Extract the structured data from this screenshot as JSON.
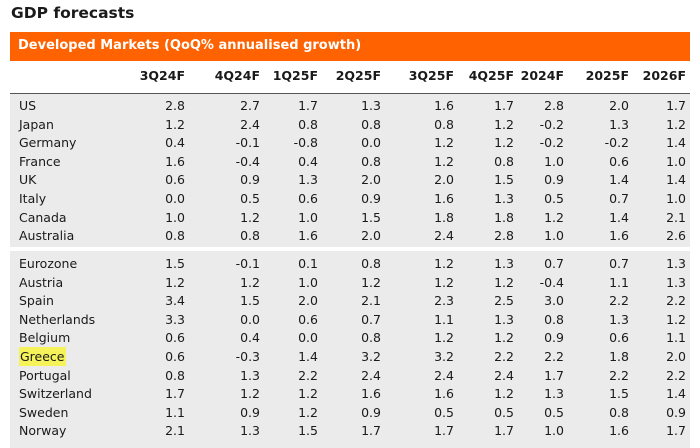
{
  "title": "GDP forecasts",
  "banner": "Developed Markets (QoQ% annualised growth)",
  "columns": [
    "3Q24F",
    "4Q24F",
    "1Q25F",
    "2Q25F",
    "3Q25F",
    "4Q25F",
    "2024F",
    "2025F",
    "2026F"
  ],
  "group1": [
    {
      "name": "US",
      "v": [
        "2.8",
        "2.7",
        "1.7",
        "1.3",
        "1.6",
        "1.7",
        "2.8",
        "2.0",
        "1.7"
      ]
    },
    {
      "name": "Japan",
      "v": [
        "1.2",
        "2.4",
        "0.8",
        "0.8",
        "0.8",
        "1.2",
        "-0.2",
        "1.3",
        "1.2"
      ]
    },
    {
      "name": "Germany",
      "v": [
        "0.4",
        "-0.1",
        "-0.8",
        "0.0",
        "1.2",
        "1.2",
        "-0.2",
        "-0.2",
        "1.4"
      ]
    },
    {
      "name": "France",
      "v": [
        "1.6",
        "-0.4",
        "0.4",
        "0.8",
        "1.2",
        "0.8",
        "1.0",
        "0.6",
        "1.0"
      ]
    },
    {
      "name": "UK",
      "v": [
        "0.6",
        "0.9",
        "1.3",
        "2.0",
        "2.0",
        "1.5",
        "0.9",
        "1.4",
        "1.4"
      ]
    },
    {
      "name": "Italy",
      "v": [
        "0.0",
        "0.5",
        "0.6",
        "0.9",
        "1.6",
        "1.3",
        "0.5",
        "0.7",
        "1.0"
      ]
    },
    {
      "name": "Canada",
      "v": [
        "1.0",
        "1.2",
        "1.0",
        "1.5",
        "1.8",
        "1.8",
        "1.2",
        "1.4",
        "2.1"
      ]
    },
    {
      "name": "Australia",
      "v": [
        "0.8",
        "0.8",
        "1.6",
        "2.0",
        "2.4",
        "2.8",
        "1.0",
        "1.6",
        "2.6"
      ]
    }
  ],
  "group2": [
    {
      "name": "Eurozone",
      "v": [
        "1.5",
        "-0.1",
        "0.1",
        "0.8",
        "1.2",
        "1.3",
        "0.7",
        "0.7",
        "1.3"
      ]
    },
    {
      "name": "Austria",
      "v": [
        "1.2",
        "1.2",
        "1.0",
        "1.2",
        "1.2",
        "1.2",
        "-0.4",
        "1.1",
        "1.3"
      ]
    },
    {
      "name": "Spain",
      "v": [
        "3.4",
        "1.5",
        "2.0",
        "2.1",
        "2.3",
        "2.5",
        "3.0",
        "2.2",
        "2.2"
      ]
    },
    {
      "name": "Netherlands",
      "v": [
        "3.3",
        "0.0",
        "0.6",
        "0.7",
        "1.1",
        "1.3",
        "0.8",
        "1.3",
        "1.2"
      ]
    },
    {
      "name": "Belgium",
      "v": [
        "0.6",
        "0.4",
        "0.0",
        "0.8",
        "1.2",
        "1.2",
        "0.9",
        "0.6",
        "1.1"
      ]
    },
    {
      "name": "Greece",
      "v": [
        "0.6",
        "-0.3",
        "1.4",
        "3.2",
        "3.2",
        "2.2",
        "2.2",
        "1.8",
        "2.0"
      ],
      "highlight": true
    },
    {
      "name": "Portugal",
      "v": [
        "0.8",
        "1.3",
        "2.2",
        "2.4",
        "2.4",
        "2.4",
        "1.7",
        "2.2",
        "2.2"
      ]
    },
    {
      "name": "Switzerland",
      "v": [
        "1.7",
        "1.2",
        "1.2",
        "1.6",
        "1.6",
        "1.2",
        "1.3",
        "1.5",
        "1.4"
      ]
    },
    {
      "name": "Sweden",
      "v": [
        "1.1",
        "0.9",
        "1.2",
        "0.9",
        "0.5",
        "0.5",
        "0.5",
        "0.8",
        "0.9"
      ]
    },
    {
      "name": "Norway",
      "v": [
        "2.1",
        "1.3",
        "1.5",
        "1.7",
        "1.7",
        "1.7",
        "1.0",
        "1.6",
        "1.7"
      ]
    }
  ]
}
